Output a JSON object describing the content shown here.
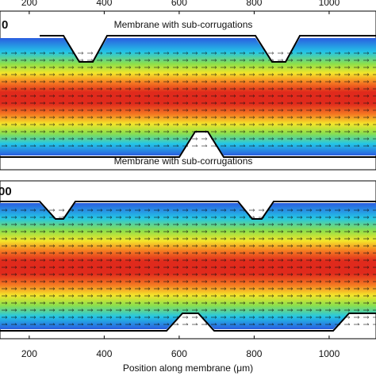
{
  "chart_data": [
    {
      "type": "field",
      "panel_label": "0",
      "annotations": [
        "Membrane with sub-corrugations",
        "Membrane with sub-corrugations"
      ],
      "xlim": [
        122,
        1125
      ],
      "xticks": [
        200,
        400,
        600,
        800,
        1000
      ],
      "xaxis_side": "top"
    },
    {
      "type": "field",
      "panel_label": "00",
      "xlabel": "Position along membrane (μm)",
      "xlim": [
        122,
        1125
      ],
      "xticks": [
        200,
        400,
        600,
        800,
        1000
      ],
      "xaxis_side": "bottom"
    }
  ]
}
